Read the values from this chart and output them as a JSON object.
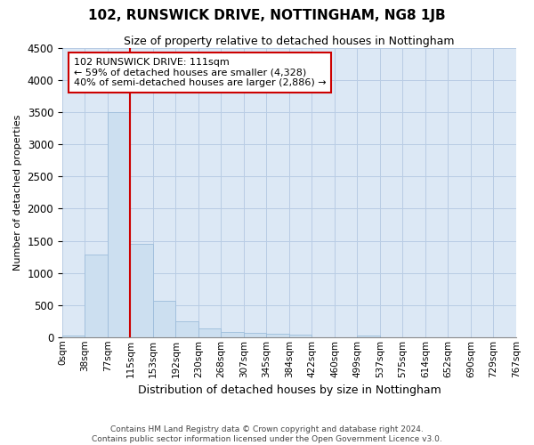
{
  "title": "102, RUNSWICK DRIVE, NOTTINGHAM, NG8 1JB",
  "subtitle": "Size of property relative to detached houses in Nottingham",
  "xlabel": "Distribution of detached houses by size in Nottingham",
  "ylabel": "Number of detached properties",
  "bin_labels": [
    "0sqm",
    "38sqm",
    "77sqm",
    "115sqm",
    "153sqm",
    "192sqm",
    "230sqm",
    "268sqm",
    "307sqm",
    "345sqm",
    "384sqm",
    "422sqm",
    "460sqm",
    "499sqm",
    "537sqm",
    "575sqm",
    "614sqm",
    "652sqm",
    "690sqm",
    "729sqm",
    "767sqm"
  ],
  "bar_heights": [
    30,
    1280,
    3500,
    1450,
    570,
    245,
    130,
    80,
    70,
    50,
    35,
    0,
    0,
    30,
    0,
    0,
    0,
    0,
    0,
    0
  ],
  "bar_color": "#ccdff0",
  "bar_edge_color": "#9dbddb",
  "grid_color": "#b8cce4",
  "bg_color": "#dce8f5",
  "ylim": [
    0,
    4500
  ],
  "yticks": [
    0,
    500,
    1000,
    1500,
    2000,
    2500,
    3000,
    3500,
    4000,
    4500
  ],
  "property_sqm": 111,
  "property_tick_index": 3,
  "annotation_line1": "102 RUNSWICK DRIVE: 111sqm",
  "annotation_line2": "← 59% of detached houses are smaller (4,328)",
  "annotation_line3": "40% of semi-detached houses are larger (2,886) →",
  "annotation_box_color": "#cc0000",
  "annotation_box_bg": "#ffffff",
  "footnote1": "Contains HM Land Registry data © Crown copyright and database right 2024.",
  "footnote2": "Contains public sector information licensed under the Open Government Licence v3.0.",
  "title_fontsize": 11,
  "subtitle_fontsize": 9,
  "ylabel_fontsize": 8,
  "xlabel_fontsize": 9
}
